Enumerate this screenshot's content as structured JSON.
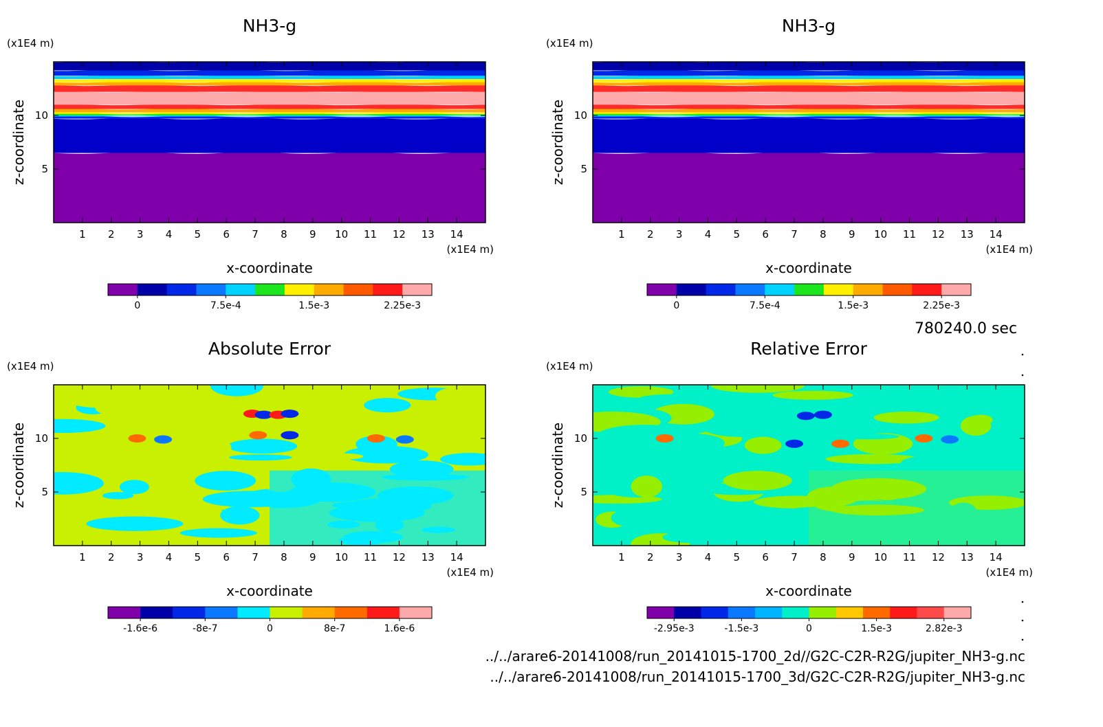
{
  "chart_data": [
    {
      "type": "heatmap",
      "title": "NH3-g",
      "xlabel": "x-coordinate",
      "ylabel": "z-coordinate",
      "x_unit": "(x1E4 m)",
      "y_unit": "(x1E4 m)",
      "xlim": [
        0,
        15
      ],
      "ylim": [
        0,
        15
      ],
      "xticks": [
        "1",
        "2",
        "3",
        "4",
        "5",
        "6",
        "7",
        "8",
        "9",
        "10",
        "11",
        "12",
        "13",
        "14"
      ],
      "yticks": [
        "5",
        "10"
      ],
      "colorbar": {
        "colors": [
          "#7f00aa",
          "#0000a8",
          "#0028e6",
          "#0a78ff",
          "#00d2ff",
          "#1ee61e",
          "#fff000",
          "#ffaa00",
          "#ff5a00",
          "#ff1a1a",
          "#ffaaaa"
        ],
        "labels": [
          "0",
          "7.5e-4",
          "1.5e-3",
          "2.25e-3"
        ]
      },
      "layers": [
        {
          "from_z": 0,
          "to_z": 6.5,
          "color": "#7f00aa"
        },
        {
          "from_z": 6.5,
          "to_z": 9.7,
          "color": "#0000c8"
        },
        {
          "from_z": 9.7,
          "to_z": 9.9,
          "color": "#0028e6"
        },
        {
          "from_z": 9.9,
          "to_z": 10.0,
          "color": "#00d2ff"
        },
        {
          "from_z": 10.0,
          "to_z": 10.15,
          "color": "#1ee61e"
        },
        {
          "from_z": 10.15,
          "to_z": 10.3,
          "color": "#fff000"
        },
        {
          "from_z": 10.3,
          "to_z": 10.6,
          "color": "#ffaa00"
        },
        {
          "from_z": 10.6,
          "to_z": 11.0,
          "color": "#ff2a2a"
        },
        {
          "from_z": 11.0,
          "to_z": 12.2,
          "color": "#ffaaaa"
        },
        {
          "from_z": 12.2,
          "to_z": 12.8,
          "color": "#ff2a2a"
        },
        {
          "from_z": 12.8,
          "to_z": 13.1,
          "color": "#ffaa00"
        },
        {
          "from_z": 13.1,
          "to_z": 13.4,
          "color": "#fff000"
        },
        {
          "from_z": 13.4,
          "to_z": 13.7,
          "color": "#00d2ff"
        },
        {
          "from_z": 13.7,
          "to_z": 14.2,
          "color": "#0028e6"
        },
        {
          "from_z": 14.2,
          "to_z": 15.0,
          "color": "#0000a8"
        }
      ]
    },
    {
      "type": "heatmap",
      "title": "NH3-g",
      "xlabel": "x-coordinate",
      "ylabel": "z-coordinate",
      "x_unit": "(x1E4 m)",
      "y_unit": "(x1E4 m)",
      "xlim": [
        0,
        15
      ],
      "ylim": [
        0,
        15
      ],
      "xticks": [
        "1",
        "2",
        "3",
        "4",
        "5",
        "6",
        "7",
        "8",
        "9",
        "10",
        "11",
        "12",
        "13",
        "14"
      ],
      "yticks": [
        "5",
        "10"
      ],
      "colorbar": {
        "colors": [
          "#7f00aa",
          "#0000a8",
          "#0028e6",
          "#0a78ff",
          "#00d2ff",
          "#1ee61e",
          "#fff000",
          "#ffaa00",
          "#ff5a00",
          "#ff1a1a",
          "#ffaaaa"
        ],
        "labels": [
          "0",
          "7.5e-4",
          "1.5e-3",
          "2.25e-3"
        ]
      },
      "layers": [
        {
          "from_z": 0,
          "to_z": 6.5,
          "color": "#7f00aa"
        },
        {
          "from_z": 6.5,
          "to_z": 9.7,
          "color": "#0000c8"
        },
        {
          "from_z": 9.7,
          "to_z": 9.9,
          "color": "#0028e6"
        },
        {
          "from_z": 9.9,
          "to_z": 10.0,
          "color": "#00d2ff"
        },
        {
          "from_z": 10.0,
          "to_z": 10.15,
          "color": "#1ee61e"
        },
        {
          "from_z": 10.15,
          "to_z": 10.3,
          "color": "#fff000"
        },
        {
          "from_z": 10.3,
          "to_z": 10.6,
          "color": "#ffaa00"
        },
        {
          "from_z": 10.6,
          "to_z": 11.0,
          "color": "#ff2a2a"
        },
        {
          "from_z": 11.0,
          "to_z": 12.2,
          "color": "#ffaaaa"
        },
        {
          "from_z": 12.2,
          "to_z": 12.8,
          "color": "#ff2a2a"
        },
        {
          "from_z": 12.8,
          "to_z": 13.1,
          "color": "#ffaa00"
        },
        {
          "from_z": 13.1,
          "to_z": 13.4,
          "color": "#fff000"
        },
        {
          "from_z": 13.4,
          "to_z": 13.7,
          "color": "#00d2ff"
        },
        {
          "from_z": 13.7,
          "to_z": 14.2,
          "color": "#0028e6"
        },
        {
          "from_z": 14.2,
          "to_z": 15.0,
          "color": "#0000a8"
        }
      ]
    },
    {
      "type": "heatmap",
      "title": "Absolute Error",
      "xlabel": "x-coordinate",
      "ylabel": "z-coordinate",
      "x_unit": "(x1E4 m)",
      "y_unit": "(x1E4 m)",
      "xlim": [
        0,
        15
      ],
      "ylim": [
        0,
        15
      ],
      "xticks": [
        "1",
        "2",
        "3",
        "4",
        "5",
        "6",
        "7",
        "8",
        "9",
        "10",
        "11",
        "12",
        "13",
        "14"
      ],
      "yticks": [
        "5",
        "10"
      ],
      "colorbar": {
        "colors": [
          "#7f00aa",
          "#0000a8",
          "#0028e6",
          "#0a78ff",
          "#00ebff",
          "#c8f000",
          "#ffaa00",
          "#ff6a00",
          "#ff1a1a",
          "#ffaaaa"
        ],
        "labels": [
          "-1.6e-6",
          "-8e-7",
          "0",
          "8e-7",
          "1.6e-6"
        ]
      },
      "background": "#c8f000",
      "secondary": "#00ebff",
      "hotspots": [
        {
          "x": 6.9,
          "z": 12.3,
          "color": "#ff1a1a"
        },
        {
          "x": 7.3,
          "z": 12.2,
          "color": "#0028e6"
        },
        {
          "x": 7.8,
          "z": 12.2,
          "color": "#ff1a1a"
        },
        {
          "x": 8.2,
          "z": 12.3,
          "color": "#0028e6"
        },
        {
          "x": 7.1,
          "z": 10.3,
          "color": "#ff6a00"
        },
        {
          "x": 8.2,
          "z": 10.3,
          "color": "#0028e6"
        },
        {
          "x": 2.9,
          "z": 10.0,
          "color": "#ff6a00"
        },
        {
          "x": 3.8,
          "z": 9.9,
          "color": "#0a78ff"
        },
        {
          "x": 11.2,
          "z": 10.0,
          "color": "#ff6a00"
        },
        {
          "x": 12.2,
          "z": 9.9,
          "color": "#0a78ff"
        }
      ]
    },
    {
      "type": "heatmap",
      "title": "Relative Error",
      "xlabel": "x-coordinate",
      "ylabel": "z-coordinate",
      "x_unit": "(x1E4 m)",
      "y_unit": "(x1E4 m)",
      "xlim": [
        0,
        15
      ],
      "ylim": [
        0,
        15
      ],
      "xticks": [
        "1",
        "2",
        "3",
        "4",
        "5",
        "6",
        "7",
        "8",
        "9",
        "10",
        "11",
        "12",
        "13",
        "14"
      ],
      "yticks": [
        "5",
        "10"
      ],
      "colorbar": {
        "colors": [
          "#7f00aa",
          "#0000a8",
          "#0028e6",
          "#0a78ff",
          "#00b4ff",
          "#00f0c8",
          "#96ee00",
          "#ffc800",
          "#ff6a00",
          "#ff1a1a",
          "#ff4a4a",
          "#ffaaaa"
        ],
        "labels": [
          "-2.95e-3",
          "-1.5e-3",
          "0",
          "1.5e-3",
          "2.82e-3"
        ]
      },
      "background": "#00f0c8",
      "secondary": "#96ee00",
      "hotspots": [
        {
          "x": 7.0,
          "z": 9.5,
          "color": "#0028e6"
        },
        {
          "x": 8.6,
          "z": 9.5,
          "color": "#ff6a00"
        },
        {
          "x": 7.4,
          "z": 12.1,
          "color": "#0028e6"
        },
        {
          "x": 8.0,
          "z": 12.2,
          "color": "#0028e6"
        },
        {
          "x": 2.5,
          "z": 10.0,
          "color": "#ff6a00"
        },
        {
          "x": 11.5,
          "z": 10.0,
          "color": "#ff6a00"
        },
        {
          "x": 12.4,
          "z": 9.9,
          "color": "#0a78ff"
        }
      ]
    }
  ],
  "time_label": "780240.0 sec",
  "footer": {
    "line1": "../../arare6-20141008/run_20141015-1700_2d//G2C-C2R-R2G/jupiter_NH3-g.nc",
    "line2": "../../arare6-20141008/run_20141015-1700_3d/G2C-C2R-R2G/jupiter_NH3-g.nc"
  }
}
